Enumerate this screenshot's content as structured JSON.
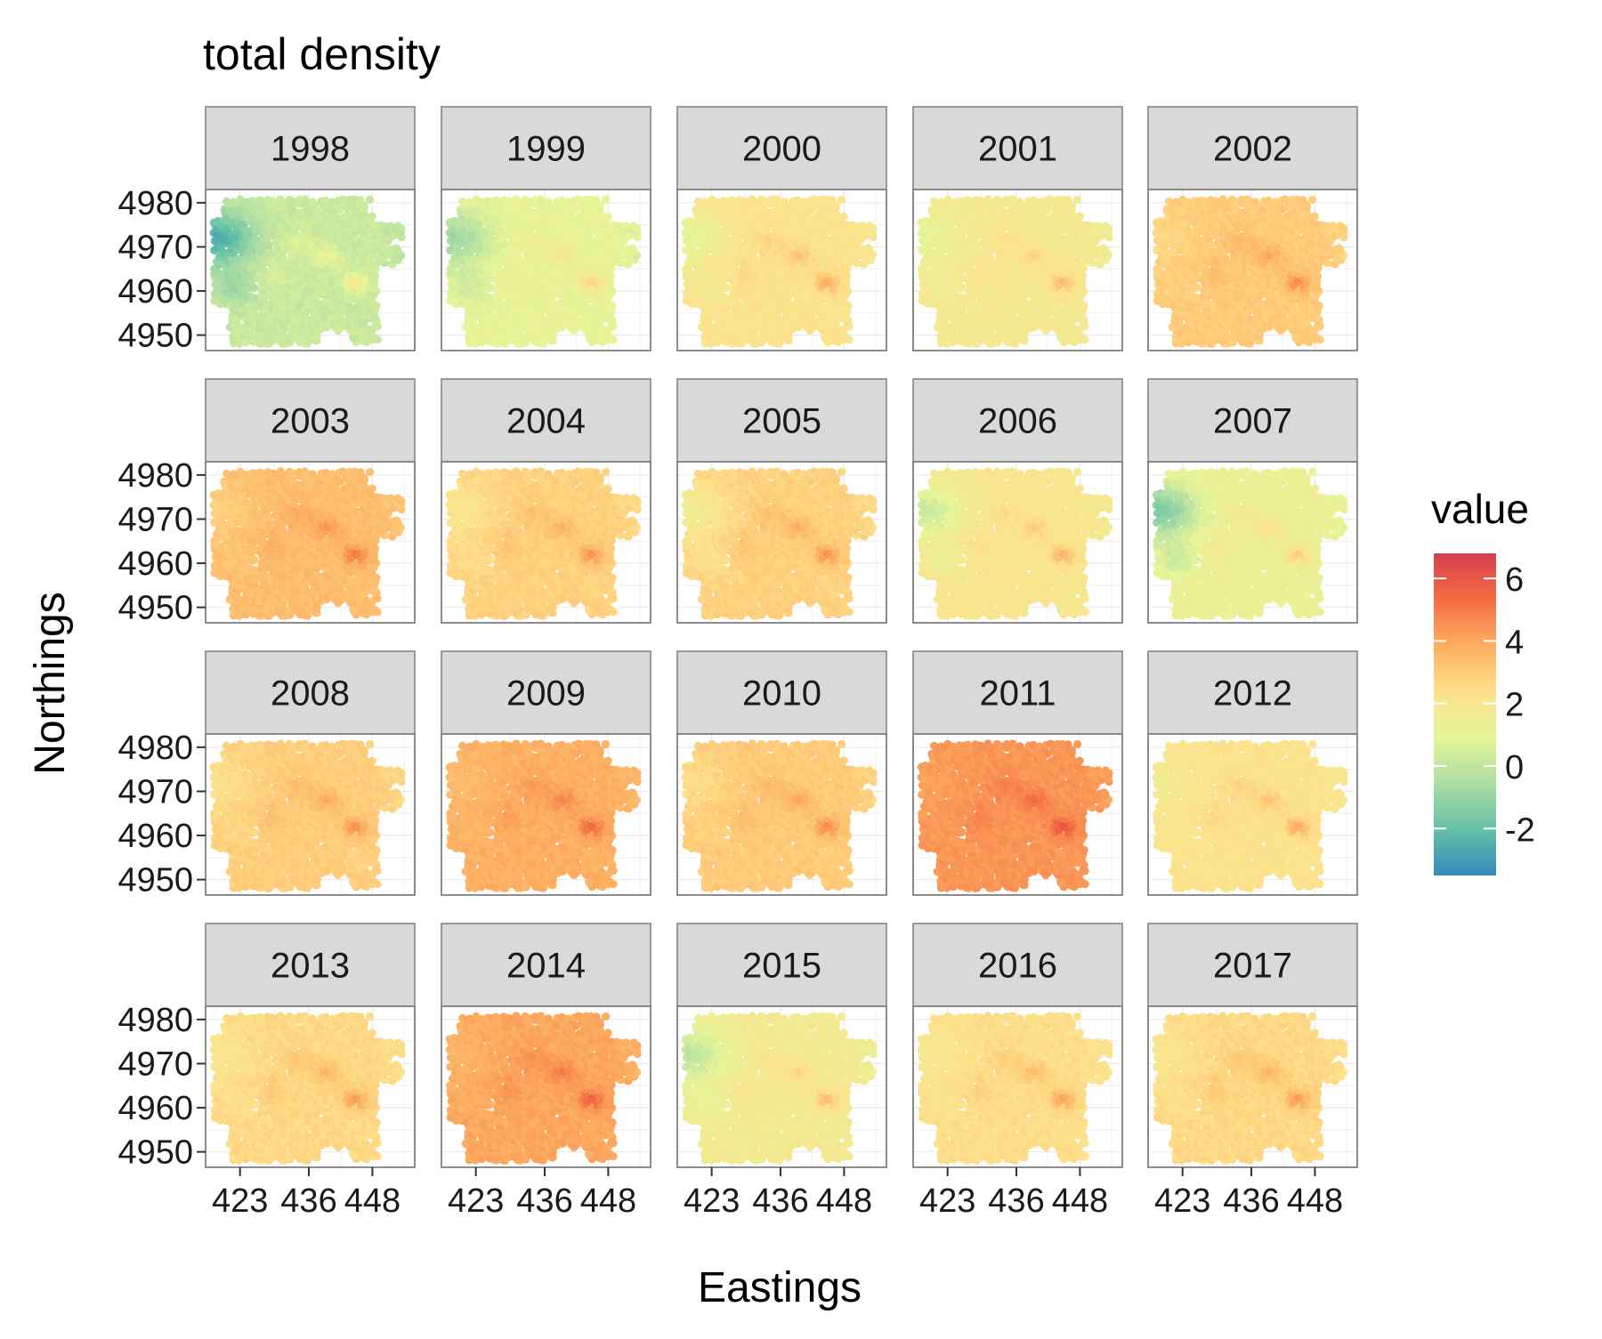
{
  "chart_data": {
    "type": "heatmap",
    "title": "total density",
    "xlabel": "Eastings",
    "ylabel": "Northings",
    "x_ticks": [
      423,
      436,
      448
    ],
    "y_ticks": [
      4950,
      4960,
      4970,
      4980
    ],
    "xlim": [
      416.5,
      456
    ],
    "ylim": [
      4946.5,
      4983
    ],
    "legend": {
      "title": "value",
      "position": "right",
      "ticks": [
        -2,
        0,
        2,
        4,
        6
      ],
      "range": [
        -3.5,
        6.8
      ],
      "colors": [
        "#3288bd",
        "#66c2a5",
        "#abdda4",
        "#e6f598",
        "#fee08b",
        "#fdae61",
        "#f46d43",
        "#d53e4f"
      ]
    },
    "grid": true,
    "facets": [
      {
        "year": "1998",
        "level": 0.2,
        "west_anomaly": -2.8
      },
      {
        "year": "1999",
        "level": 1.0,
        "west_anomaly": -1.8
      },
      {
        "year": "2000",
        "level": 2.2,
        "west_anomaly": -1.3
      },
      {
        "year": "2001",
        "level": 1.8,
        "west_anomaly": -0.8
      },
      {
        "year": "2002",
        "level": 3.0,
        "west_anomaly": -0.4
      },
      {
        "year": "2003",
        "level": 3.4,
        "west_anomaly": -0.6
      },
      {
        "year": "2004",
        "level": 2.8,
        "west_anomaly": -0.9
      },
      {
        "year": "2005",
        "level": 2.8,
        "west_anomaly": -1.3
      },
      {
        "year": "2006",
        "level": 2.0,
        "west_anomaly": -1.8
      },
      {
        "year": "2007",
        "level": 1.3,
        "west_anomaly": -2.8
      },
      {
        "year": "2008",
        "level": 2.9,
        "west_anomaly": -0.6
      },
      {
        "year": "2009",
        "level": 3.8,
        "west_anomaly": -0.4
      },
      {
        "year": "2010",
        "level": 3.0,
        "west_anomaly": -0.6
      },
      {
        "year": "2011",
        "level": 4.4,
        "west_anomaly": -0.3
      },
      {
        "year": "2012",
        "level": 2.2,
        "west_anomaly": -0.6
      },
      {
        "year": "2013",
        "level": 2.6,
        "west_anomaly": -0.6
      },
      {
        "year": "2014",
        "level": 4.0,
        "west_anomaly": -0.4
      },
      {
        "year": "2015",
        "level": 1.7,
        "west_anomaly": -1.8
      },
      {
        "year": "2016",
        "level": 2.4,
        "west_anomaly": -0.6
      },
      {
        "year": "2017",
        "level": 2.6,
        "west_anomaly": -0.6
      }
    ]
  }
}
